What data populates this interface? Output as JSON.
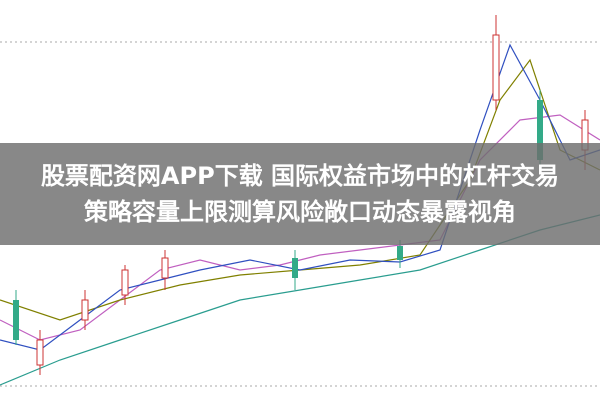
{
  "banner": {
    "lines": [
      "股票配资网APP下载 国际权益市场中的杠杆交易",
      "策略容量上限测算风险敞口动态暴露视角"
    ]
  }
}
